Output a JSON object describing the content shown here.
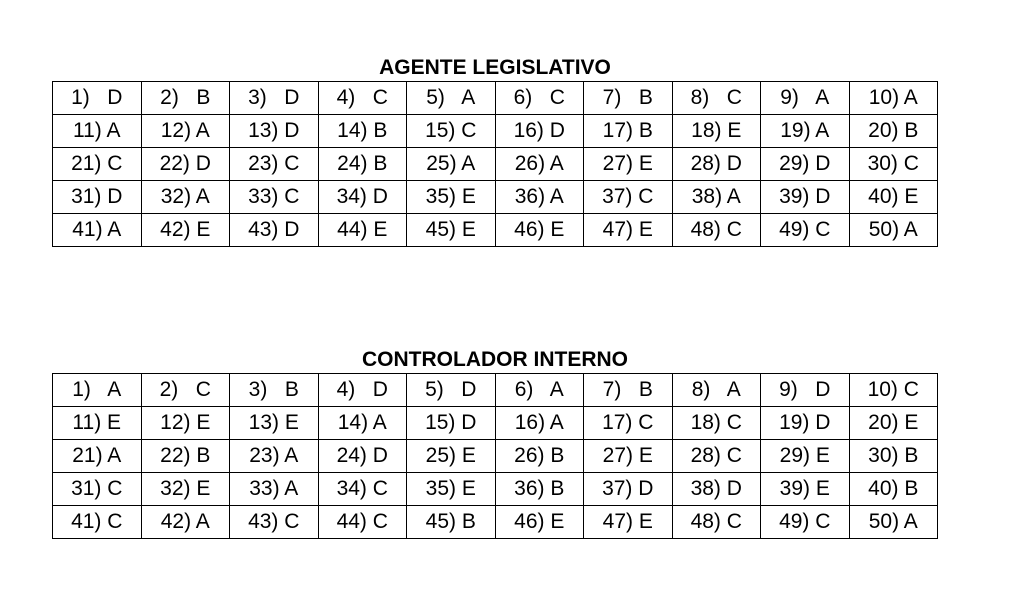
{
  "tables": [
    {
      "title": "AGENTE LEGISLATIVO",
      "rows": [
        [
          "1)   D",
          "2)   B",
          "3)   D",
          "4)   C",
          "5)   A",
          "6)   C",
          "7)   B",
          "8)   C",
          "9)   A",
          "10) A"
        ],
        [
          "11) A",
          "12) A",
          "13) D",
          "14) B",
          "15) C",
          "16) D",
          "17) B",
          "18) E",
          "19) A",
          "20) B"
        ],
        [
          "21) C",
          "22) D",
          "23) C",
          "24) B",
          "25) A",
          "26) A",
          "27) E",
          "28) D",
          "29) D",
          "30) C"
        ],
        [
          "31) D",
          "32) A",
          "33) C",
          "34) D",
          "35) E",
          "36) A",
          "37) C",
          "38) A",
          "39) D",
          "40) E"
        ],
        [
          "41) A",
          "42) E",
          "43) D",
          "44) E",
          "45) E",
          "46) E",
          "47) E",
          "48) C",
          "49) C",
          "50) A"
        ]
      ]
    },
    {
      "title": "CONTROLADOR INTERNO",
      "rows": [
        [
          "1)   A",
          "2)   C",
          "3)   B",
          "4)   D",
          "5)   D",
          "6)   A",
          "7)   B",
          "8)   A",
          "9)   D",
          "10) C"
        ],
        [
          "11) E",
          "12) E",
          "13) E",
          "14) A",
          "15) D",
          "16) A",
          "17) C",
          "18) C",
          "19) D",
          "20) E"
        ],
        [
          "21) A",
          "22) B",
          "23) A",
          "24) D",
          "25) E",
          "26) B",
          "27) E",
          "28) C",
          "29) E",
          "30) B"
        ],
        [
          "31) C",
          "32) E",
          "33) A",
          "34) C",
          "35) E",
          "36) B",
          "37) D",
          "38) D",
          "39) E",
          "40) B"
        ],
        [
          "41) C",
          "42) A",
          "43) C",
          "44) C",
          "45) B",
          "46) E",
          "47) E",
          "48) C",
          "49) C",
          "50) A"
        ]
      ]
    }
  ]
}
